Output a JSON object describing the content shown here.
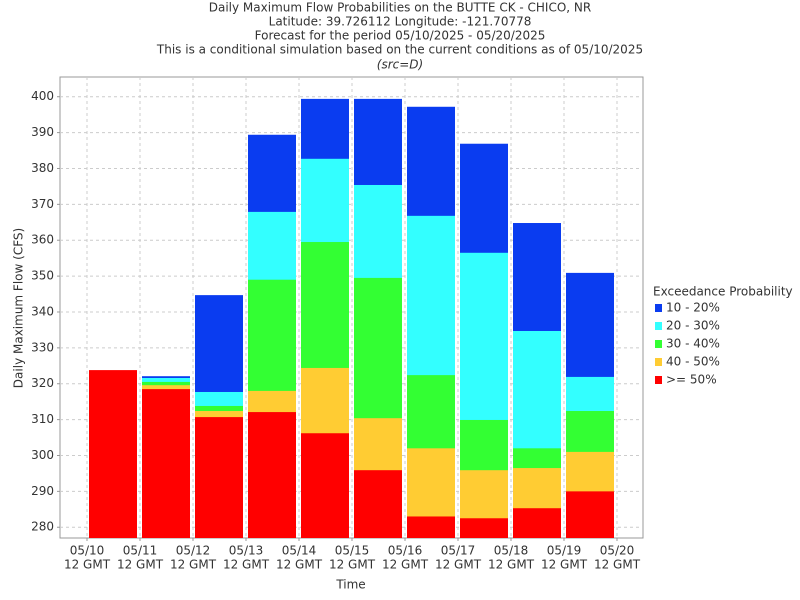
{
  "chart_data": {
    "type": "overlaid-bar",
    "title": [
      "Daily Maximum Flow Probabilities on the BUTTE CK - CHICO, NR",
      "Latitude: 39.726112 Longitude: -121.70778",
      "Forecast for the period 05/10/2025 - 05/20/2025",
      "This is a conditional simulation based on the current conditions as of 05/10/2025"
    ],
    "subtitle": "(src=D)",
    "y_label": "Daily Maximum Flow (CFS)",
    "x_label": "Time",
    "legend_title": "Exceedance Probability",
    "legend": "right",
    "grid": true,
    "xticks": [
      {
        "date": "05/10",
        "time": "12 GMT"
      },
      {
        "date": "05/11",
        "time": "12 GMT"
      },
      {
        "date": "05/12",
        "time": "12 GMT"
      },
      {
        "date": "05/13",
        "time": "12 GMT"
      },
      {
        "date": "05/14",
        "time": "12 GMT"
      },
      {
        "date": "05/15",
        "time": "12 GMT"
      },
      {
        "date": "05/16",
        "time": "12 GMT"
      },
      {
        "date": "05/17",
        "time": "12 GMT"
      },
      {
        "date": "05/18",
        "time": "12 GMT"
      },
      {
        "date": "05/19",
        "time": "12 GMT"
      },
      {
        "date": "05/20",
        "time": "12 GMT"
      }
    ],
    "ylim": [
      277,
      405.5
    ],
    "yticks": [
      280,
      290,
      300,
      310,
      320,
      330,
      340,
      350,
      360,
      370,
      380,
      390,
      400
    ],
    "series": [
      {
        "name": "10 - 20%",
        "color": "#0a3cf0",
        "values": [
          null,
          322.1,
          344.7,
          389.4,
          399.4,
          399.4,
          397.2,
          386.9,
          364.8,
          350.9
        ]
      },
      {
        "name": "20 - 30%",
        "color": "#33ffff",
        "values": [
          null,
          321.6,
          317.7,
          367.9,
          382.7,
          375.4,
          366.8,
          356.5,
          334.7,
          321.9
        ]
      },
      {
        "name": "30 - 40%",
        "color": "#33ff33",
        "values": [
          null,
          320.5,
          313.8,
          349,
          359.5,
          349.5,
          322.4,
          309.9,
          302,
          312.4
        ]
      },
      {
        "name": "40 - 50%",
        "color": "#ffcc33",
        "values": [
          null,
          319.6,
          312.4,
          318,
          324.4,
          310.4,
          302,
          295.9,
          296.5,
          301
        ]
      },
      {
        "name": ">= 50%",
        "color": "#ff0000",
        "values": [
          323.8,
          318.5,
          310.7,
          312.1,
          306.2,
          295.9,
          283,
          282.5,
          285.3,
          290
        ]
      }
    ]
  }
}
